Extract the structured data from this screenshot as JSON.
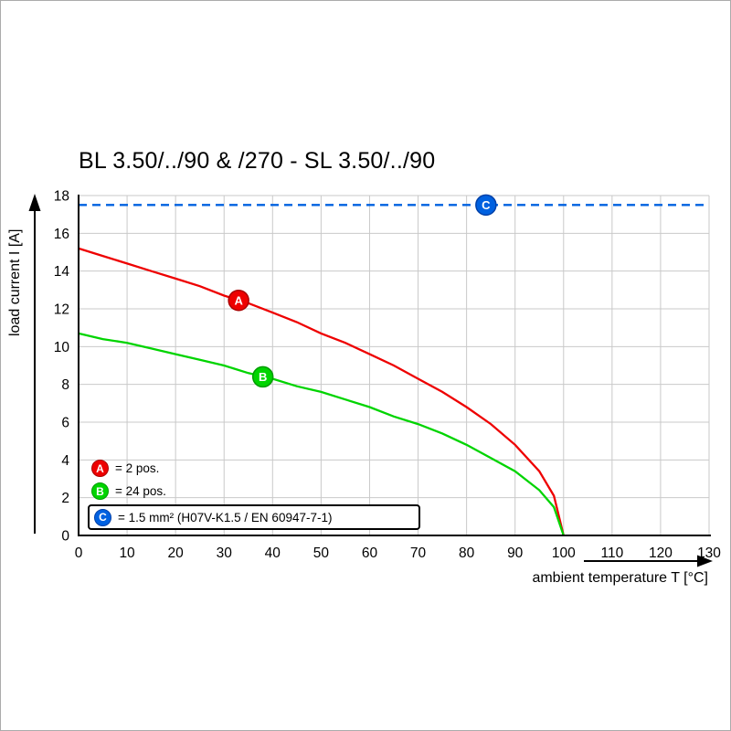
{
  "chart_data": {
    "type": "line",
    "title": "BL 3.50/../90 & /270 - SL 3.50/../90",
    "xlabel": "ambient temperature T [°C]",
    "ylabel": "load current I [A]",
    "xlim": [
      0,
      130
    ],
    "ylim": [
      0,
      18
    ],
    "x_ticks": [
      0,
      10,
      20,
      30,
      40,
      50,
      60,
      70,
      80,
      90,
      100,
      110,
      120,
      130
    ],
    "y_ticks": [
      0,
      2,
      4,
      6,
      8,
      10,
      12,
      14,
      16,
      18
    ],
    "grid": true,
    "legend_position": "bottom-left",
    "colors": {
      "grid": "#c9c9c9",
      "axis": "#000000"
    },
    "series": [
      {
        "name": "A",
        "label": "= 2 pos.",
        "color": "#ee0000",
        "edge": "#aa0000",
        "style": "solid",
        "x": [
          0,
          5,
          10,
          15,
          20,
          25,
          30,
          35,
          40,
          45,
          50,
          55,
          60,
          65,
          70,
          75,
          80,
          85,
          90,
          95,
          98,
          100
        ],
        "y": [
          15.2,
          14.8,
          14.4,
          14.0,
          13.6,
          13.2,
          12.7,
          12.3,
          11.8,
          11.3,
          10.7,
          10.2,
          9.6,
          9.0,
          8.3,
          7.6,
          6.8,
          5.9,
          4.8,
          3.4,
          2.1,
          0
        ],
        "marker": {
          "x": 33,
          "y": 12.45
        }
      },
      {
        "name": "B",
        "label": "= 24 pos.",
        "color": "#00d400",
        "edge": "#009c00",
        "style": "solid",
        "x": [
          0,
          5,
          10,
          15,
          20,
          25,
          30,
          35,
          40,
          45,
          50,
          55,
          60,
          65,
          70,
          75,
          80,
          85,
          90,
          95,
          98,
          100
        ],
        "y": [
          10.7,
          10.4,
          10.2,
          9.9,
          9.6,
          9.3,
          9.0,
          8.6,
          8.3,
          7.9,
          7.6,
          7.2,
          6.8,
          6.3,
          5.9,
          5.4,
          4.8,
          4.1,
          3.4,
          2.4,
          1.5,
          0
        ],
        "marker": {
          "x": 38,
          "y": 8.4
        }
      },
      {
        "name": "C",
        "label": "= 1.5 mm² (H07V-K1.5 / EN 60947-7-1)",
        "color": "#0061e0",
        "edge": "#0040a8",
        "style": "dashed",
        "x": [
          0,
          130
        ],
        "y": [
          17.5,
          17.5
        ],
        "marker": {
          "x": 84,
          "y": 17.5
        }
      }
    ]
  }
}
